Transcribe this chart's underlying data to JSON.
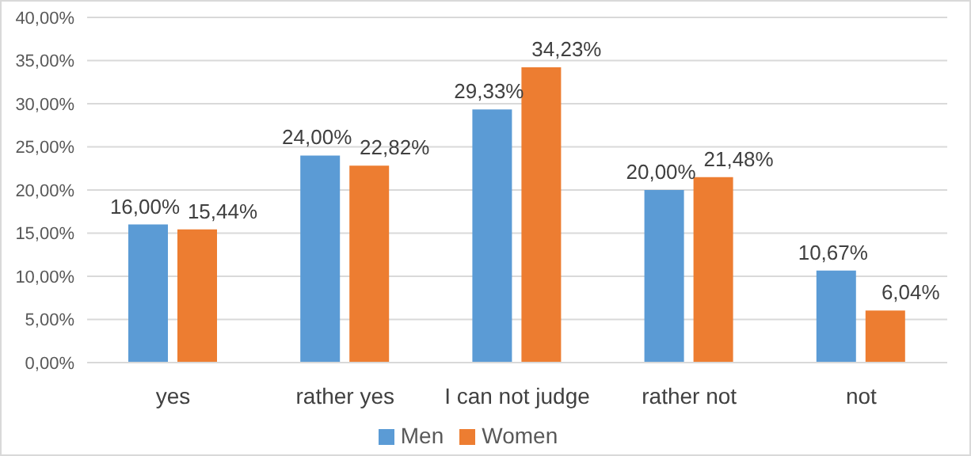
{
  "chart_data": {
    "type": "bar",
    "categories": [
      "yes",
      "rather yes",
      "I can not judge",
      "rather not",
      "not"
    ],
    "series": [
      {
        "name": "Men",
        "color": "#5b9bd5",
        "values": [
          16.0,
          24.0,
          29.33,
          20.0,
          10.67
        ],
        "value_labels": [
          "16,00%",
          "24,00%",
          "29,33%",
          "20,00%",
          "10,67%"
        ]
      },
      {
        "name": "Women",
        "color": "#ed7d31",
        "values": [
          15.44,
          22.82,
          34.23,
          21.48,
          6.04
        ],
        "value_labels": [
          "15,44%",
          "22,82%",
          "34,23%",
          "21,48%",
          "6,04%"
        ]
      }
    ],
    "ylim": [
      0,
      40
    ],
    "yticks": [
      {
        "value": 0,
        "label": "0,00%"
      },
      {
        "value": 5,
        "label": "5,00%"
      },
      {
        "value": 10,
        "label": "10,00%"
      },
      {
        "value": 15,
        "label": "15,00%"
      },
      {
        "value": 20,
        "label": "20,00%"
      },
      {
        "value": 25,
        "label": "25,00%"
      },
      {
        "value": 30,
        "label": "30,00%"
      },
      {
        "value": 35,
        "label": "35,00%"
      },
      {
        "value": 40,
        "label": "40,00%"
      }
    ],
    "grid": "y",
    "legend": "bottom"
  }
}
